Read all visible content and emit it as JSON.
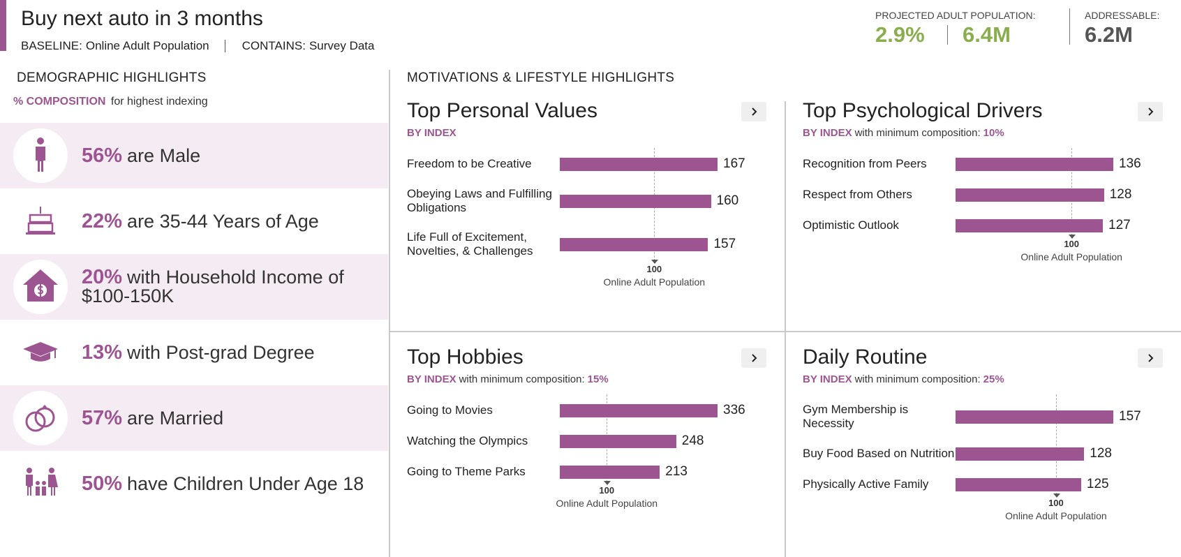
{
  "header": {
    "title": "Buy next auto in 3 months",
    "baseline_label": "BASELINE:",
    "baseline": "Online Adult Population",
    "contains_label": "CONTAINS:",
    "contains": "Survey Data",
    "projected_label": "PROJECTED ADULT POPULATION:",
    "projected_pct": "2.9%",
    "projected_count": "6.4M",
    "addressable_label": "ADDRESSABLE:",
    "addressable": "6.2M"
  },
  "demographics": {
    "title": "DEMOGRAPHIC HIGHLIGHTS",
    "subtitle_key": "% COMPOSITION",
    "subtitle": "for highest indexing",
    "items": [
      {
        "value": "56%",
        "text": "are Male"
      },
      {
        "value": "22%",
        "text": "are 35-44 Years of Age"
      },
      {
        "value": "20%",
        "text": "with Household Income of $100-150K"
      },
      {
        "value": "13%",
        "text": "with Post-grad Degree"
      },
      {
        "value": "57%",
        "text": "are Married"
      },
      {
        "value": "50%",
        "text": "have Children Under Age 18"
      }
    ]
  },
  "motivations": {
    "title": "MOTIVATIONS & LIFESTYLE HIGHLIGHTS",
    "panels": [
      {
        "type": "bar",
        "title": "Top Personal Values",
        "metric": "BY INDEX",
        "categories": [
          "Freedom to be Creative",
          "Obeying Laws and Fulfilling Obligations",
          "Life Full of Excitement, Novelties, & Challenges"
        ],
        "values": [
          167,
          160,
          157
        ],
        "color": "#9c5591",
        "reference": {
          "value": 100,
          "label": "Online Adult Population"
        }
      },
      {
        "type": "bar",
        "title": "Top Psychological Drivers",
        "metric": "BY INDEX",
        "min_label": "with minimum composition:",
        "min_value": "10%",
        "categories": [
          "Recognition from Peers",
          "Respect from Others",
          "Optimistic Outlook"
        ],
        "values": [
          136,
          128,
          127
        ],
        "color": "#9c5591",
        "reference": {
          "value": 100,
          "label": "Online Adult Population"
        }
      },
      {
        "type": "bar",
        "title": "Top Hobbies",
        "metric": "BY INDEX",
        "min_label": "with minimum composition:",
        "min_value": "15%",
        "categories": [
          "Going to Movies",
          "Watching the Olympics",
          "Going to Theme Parks"
        ],
        "values": [
          336,
          248,
          213
        ],
        "color": "#9c5591",
        "reference": {
          "value": 100,
          "label": "Online Adult Population"
        }
      },
      {
        "type": "bar",
        "title": "Daily Routine",
        "metric": "BY INDEX",
        "min_label": "with minimum composition:",
        "min_value": "25%",
        "categories": [
          "Gym Membership is Necessity",
          "Buy Food Based on Nutrition",
          "Physically Active Family"
        ],
        "values": [
          157,
          128,
          125
        ],
        "color": "#9c5591",
        "reference": {
          "value": 100,
          "label": "Online Adult Population"
        }
      }
    ]
  }
}
